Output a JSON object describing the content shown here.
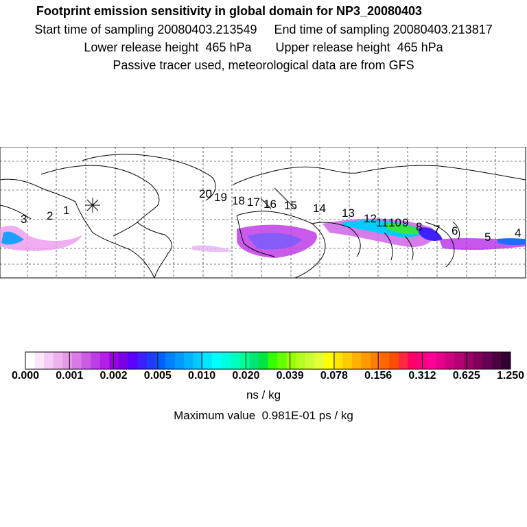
{
  "header": {
    "title": "Footprint emission sensitivity in global domain for NP3_20080403",
    "line2": "Start time of sampling 20080403.213549     End time of sampling 20080403.213817",
    "line3": "Lower release height  465 hPa       Upper release height  465 hPa",
    "line4": "Passive tracer used, meteorological data are from GFS"
  },
  "map": {
    "point_labels": [
      "1",
      "2",
      "3",
      "4",
      "5",
      "6",
      "7",
      "8",
      "9",
      "10",
      "11",
      "12",
      "13",
      "14",
      "15",
      "16",
      "17",
      "18",
      "19",
      "20"
    ],
    "release_marker": "asterisk"
  },
  "colorbar": {
    "colors": [
      "#ffffff",
      "#fbe6fb",
      "#f5ccf5",
      "#eeb3ee",
      "#e699e6",
      "#d97ae6",
      "#cc5ce6",
      "#bf3de6",
      "#b31fe6",
      "#9a00e6",
      "#7a00e6",
      "#5c00ff",
      "#3d1fff",
      "#1f3dff",
      "#0061ff",
      "#0080ff",
      "#0099ff",
      "#00b3ff",
      "#00ccff",
      "#00e6ff",
      "#00ffff",
      "#00ffe0",
      "#00ffbf",
      "#00ff99",
      "#00e673",
      "#00e640",
      "#33ff00",
      "#66ff00",
      "#99ff00",
      "#b3ff1f",
      "#ccff33",
      "#e6ff33",
      "#ffff00",
      "#ffe600",
      "#ffcc00",
      "#ffb300",
      "#ff9900",
      "#ff8000",
      "#ff6600",
      "#ff4d00",
      "#ff2a40",
      "#ff0066",
      "#ff0080",
      "#ff0099",
      "#e6008c",
      "#cc0080",
      "#b30073",
      "#990066",
      "#80005c",
      "#660052",
      "#4d0040",
      "#330033"
    ],
    "tick_labels": [
      "0.000",
      "0.001",
      "0.002",
      "0.005",
      "0.010",
      "0.020",
      "0.039",
      "0.078",
      "0.156",
      "0.312",
      "0.625",
      "1.250"
    ],
    "unit": "ns / kg",
    "max_value_text": "Maximum value  0.981E-01 ps / kg"
  }
}
